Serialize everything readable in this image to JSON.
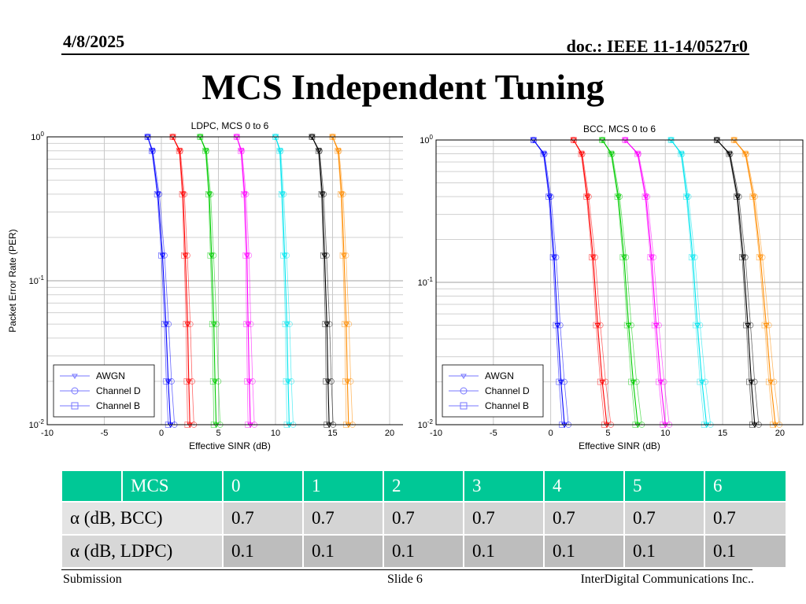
{
  "header": {
    "date": "4/8/2025",
    "doc": "doc.: IEEE 11-14/0527r0"
  },
  "title": "MCS Independent Tuning",
  "chart_data": [
    {
      "type": "line",
      "title": "LDPC, MCS 0 to 6",
      "xlabel": "Effective SINR (dB)",
      "ylabel": "Packet Error Rate (PER)",
      "yscale": "log",
      "xlim": [
        -10,
        22
      ],
      "ylim": [
        0.01,
        1
      ],
      "xticks": [
        "-10",
        "-5",
        "0",
        "5",
        "10",
        "15",
        "20"
      ],
      "yticks": [
        {
          "base": "10",
          "exp": "0"
        },
        {
          "base": "10",
          "exp": "-1"
        },
        {
          "base": "10",
          "exp": "-2"
        }
      ],
      "legend": {
        "position": "bottom-left",
        "entries": [
          "AWGN",
          "Channel D",
          "Channel B"
        ]
      },
      "series": [
        {
          "mcs": 0,
          "color": "#0000ff",
          "x": [
            -1.2,
            -0.8,
            -0.3,
            0.1,
            0.4,
            0.6,
            0.8
          ],
          "y": [
            1.0,
            0.8,
            0.4,
            0.15,
            0.05,
            0.02,
            0.01
          ]
        },
        {
          "mcs": 1,
          "color": "#ff0000",
          "x": [
            1.0,
            1.6,
            1.9,
            2.1,
            2.3,
            2.4,
            2.5
          ],
          "y": [
            1.0,
            0.8,
            0.4,
            0.15,
            0.05,
            0.02,
            0.01
          ]
        },
        {
          "mcs": 2,
          "color": "#00cc00",
          "x": [
            3.4,
            3.9,
            4.2,
            4.4,
            4.6,
            4.7,
            4.8
          ],
          "y": [
            1.0,
            0.8,
            0.4,
            0.15,
            0.05,
            0.02,
            0.01
          ]
        },
        {
          "mcs": 3,
          "color": "#ff00ff",
          "x": [
            6.6,
            7.0,
            7.3,
            7.5,
            7.6,
            7.7,
            7.8
          ],
          "y": [
            1.0,
            0.8,
            0.4,
            0.15,
            0.05,
            0.02,
            0.01
          ]
        },
        {
          "mcs": 4,
          "color": "#00e5ee",
          "x": [
            10.0,
            10.4,
            10.6,
            10.8,
            11.0,
            11.1,
            11.2
          ],
          "y": [
            1.0,
            0.8,
            0.4,
            0.15,
            0.05,
            0.02,
            0.01
          ]
        },
        {
          "mcs": 5,
          "color": "#000000",
          "x": [
            13.2,
            13.8,
            14.1,
            14.3,
            14.5,
            14.6,
            14.7
          ],
          "y": [
            1.0,
            0.8,
            0.4,
            0.15,
            0.05,
            0.02,
            0.01
          ]
        },
        {
          "mcs": 6,
          "color": "#ff8c00",
          "x": [
            15.0,
            15.5,
            15.8,
            16.0,
            16.2,
            16.3,
            16.4
          ],
          "y": [
            1.0,
            0.8,
            0.4,
            0.15,
            0.05,
            0.02,
            0.01
          ]
        }
      ]
    },
    {
      "type": "line",
      "title": "BCC, MCS 0 to 6",
      "xlabel": "Effective SINR (dB)",
      "ylabel": "",
      "yscale": "log",
      "xlim": [
        -10,
        22
      ],
      "ylim": [
        0.01,
        1
      ],
      "xticks": [
        "-10",
        "-5",
        "0",
        "5",
        "10",
        "15",
        "20"
      ],
      "yticks": [
        {
          "base": "10",
          "exp": "0"
        },
        {
          "base": "10",
          "exp": "-1"
        },
        {
          "base": "10",
          "exp": "-2"
        }
      ],
      "legend": {
        "position": "bottom-left",
        "entries": [
          "AWGN",
          "Channel D",
          "Channel B"
        ]
      },
      "series": [
        {
          "mcs": 0,
          "color": "#0000ff",
          "x": [
            -1.5,
            -0.6,
            -0.1,
            0.3,
            0.6,
            0.9,
            1.2
          ],
          "y": [
            1.0,
            0.8,
            0.4,
            0.15,
            0.05,
            0.02,
            0.01
          ]
        },
        {
          "mcs": 1,
          "color": "#ff0000",
          "x": [
            2.0,
            2.7,
            3.2,
            3.7,
            4.1,
            4.5,
            4.9
          ],
          "y": [
            1.0,
            0.8,
            0.4,
            0.15,
            0.05,
            0.02,
            0.01
          ]
        },
        {
          "mcs": 2,
          "color": "#00cc00",
          "x": [
            4.5,
            5.3,
            5.9,
            6.4,
            6.8,
            7.2,
            7.6
          ],
          "y": [
            1.0,
            0.8,
            0.4,
            0.15,
            0.05,
            0.02,
            0.01
          ]
        },
        {
          "mcs": 3,
          "color": "#ff00ff",
          "x": [
            6.5,
            7.6,
            8.3,
            8.8,
            9.2,
            9.6,
            10.0
          ],
          "y": [
            1.0,
            0.8,
            0.4,
            0.15,
            0.05,
            0.02,
            0.01
          ]
        },
        {
          "mcs": 4,
          "color": "#00e5ee",
          "x": [
            10.5,
            11.4,
            11.9,
            12.4,
            12.8,
            13.2,
            13.6
          ],
          "y": [
            1.0,
            0.8,
            0.4,
            0.15,
            0.05,
            0.02,
            0.01
          ]
        },
        {
          "mcs": 5,
          "color": "#000000",
          "x": [
            14.5,
            15.6,
            16.3,
            16.8,
            17.2,
            17.5,
            17.8
          ],
          "y": [
            1.0,
            0.8,
            0.4,
            0.15,
            0.05,
            0.02,
            0.01
          ]
        },
        {
          "mcs": 6,
          "color": "#ff8c00",
          "x": [
            16.0,
            17.0,
            17.7,
            18.3,
            18.8,
            19.2,
            19.6
          ],
          "y": [
            1.0,
            0.8,
            0.4,
            0.15,
            0.05,
            0.02,
            0.01
          ]
        }
      ]
    }
  ],
  "table": {
    "header_color": "#00c896",
    "columns": [
      "",
      "MCS",
      "0",
      "1",
      "2",
      "3",
      "4",
      "5",
      "6"
    ],
    "rows": [
      {
        "label": "α (dB, BCC)",
        "values": [
          "0.7",
          "0.7",
          "0.7",
          "0.7",
          "0.7",
          "0.7",
          "0.7"
        ]
      },
      {
        "label": "α (dB, LDPC)",
        "values": [
          "0.1",
          "0.1",
          "0.1",
          "0.1",
          "0.1",
          "0.1",
          "0.1"
        ]
      }
    ]
  },
  "footer": {
    "left": "Submission",
    "middle": "Slide 6",
    "right": "InterDigital Communications Inc.."
  }
}
